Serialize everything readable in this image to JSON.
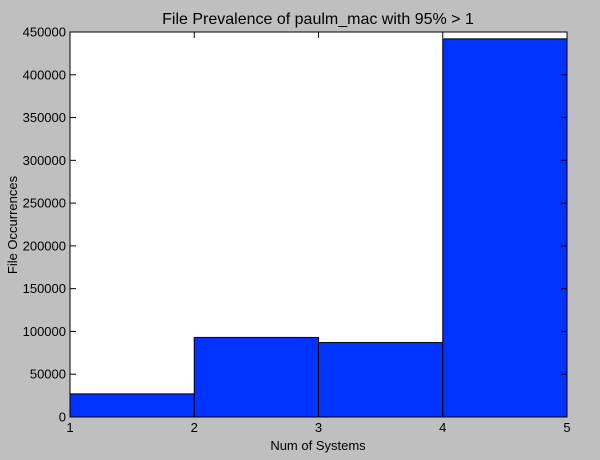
{
  "chart_data": {
    "type": "bar",
    "title": "File Prevalence of paulm_mac with 95% > 1",
    "xlabel": "Num of Systems",
    "ylabel": "File Occurrences",
    "bins": [
      {
        "start": 1,
        "end": 2,
        "value": 27000
      },
      {
        "start": 2,
        "end": 3,
        "value": 93000
      },
      {
        "start": 3,
        "end": 4,
        "value": 87000
      },
      {
        "start": 4,
        "end": 5,
        "value": 442000
      }
    ],
    "xlim": [
      1,
      5
    ],
    "ylim": [
      0,
      450000
    ],
    "x_ticks": [
      1,
      2,
      3,
      4,
      5
    ],
    "y_ticks": [
      0,
      50000,
      100000,
      150000,
      200000,
      250000,
      300000,
      350000,
      400000,
      450000
    ],
    "grid": false,
    "bar_color": "#0033ff",
    "edge_color": "#000000"
  }
}
